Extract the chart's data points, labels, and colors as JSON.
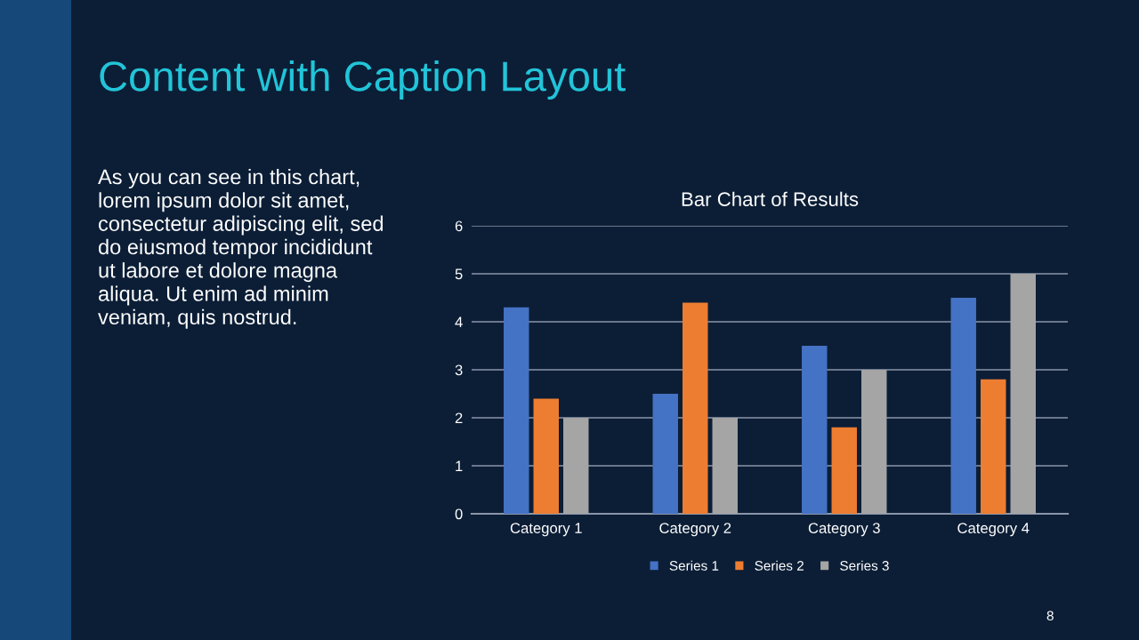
{
  "chart_data": {
    "type": "bar",
    "title": "Bar Chart of Results",
    "categories": [
      "Category 1",
      "Category 2",
      "Category 3",
      "Category 4"
    ],
    "series": [
      {
        "name": "Series 1",
        "color": "#4472c4",
        "values": [
          4.3,
          2.5,
          3.5,
          4.5
        ]
      },
      {
        "name": "Series 2",
        "color": "#ed7d31",
        "values": [
          2.4,
          4.4,
          1.8,
          2.8
        ]
      },
      {
        "name": "Series 3",
        "color": "#a5a5a5",
        "values": [
          2,
          2,
          3,
          5
        ]
      }
    ],
    "ylim": [
      0,
      6
    ],
    "yticks": [
      0,
      1,
      2,
      3,
      4,
      5,
      6
    ],
    "grid": "y",
    "legend": "bottom",
    "annotations": [
      "Content with Caption Layout",
      "As you can see in this chart,\nlorem ipsum dolor sit amet,\nconsectetur adipiscing elit, sed\ndo eiusmod tempor incididunt\nut labore et dolore magna\naliqua. Ut enim ad minim\nveniam, quis nostrud.",
      "8"
    ]
  }
}
